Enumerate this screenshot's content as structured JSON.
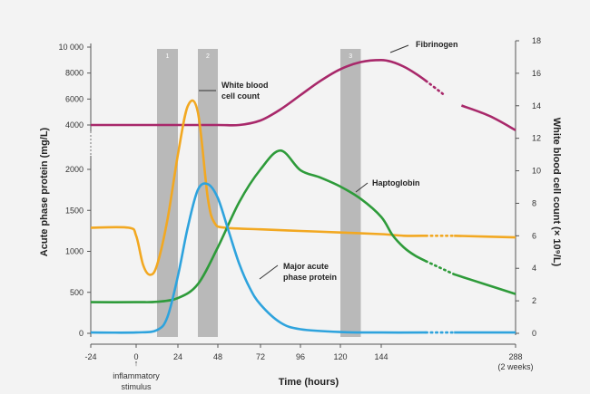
{
  "chart_data": {
    "type": "line",
    "xlabel": "Time (hours)",
    "ylabel_left": "Acute phase protein (mg/L)",
    "ylabel_right": "White blood cell count (× 10⁹/L)",
    "x_ticks": [
      {
        "value": -24,
        "label": "-24"
      },
      {
        "value": 0,
        "label": "0"
      },
      {
        "value": 24,
        "label": "24"
      },
      {
        "value": 48,
        "label": "48"
      },
      {
        "value": 72,
        "label": "72"
      },
      {
        "value": 96,
        "label": "96"
      },
      {
        "value": 120,
        "label": "120"
      },
      {
        "value": 144,
        "label": "144"
      },
      {
        "value": 288,
        "label": "288"
      }
    ],
    "x_tick_288_sub": "(2 weeks)",
    "stimulus_label_line1": "inflammatory",
    "stimulus_label_line2": "stimulus",
    "stimulus_arrow": "↑",
    "left_ticks_lower": [
      "0",
      "500",
      "1000",
      "1500",
      "2000"
    ],
    "left_ticks_upper": [
      "4000",
      "6000",
      "8000",
      "10 000"
    ],
    "right_ticks": [
      "0",
      "2",
      "4",
      "6",
      "8",
      "10",
      "12",
      "14",
      "16",
      "18"
    ],
    "bands": [
      {
        "label": "1",
        "start": 12,
        "end": 24
      },
      {
        "label": "2",
        "start": 36,
        "end": 48
      },
      {
        "label": "3",
        "start": 120,
        "end": 132
      }
    ],
    "series": [
      {
        "name": "Fibrinogen",
        "color": "#a8286a",
        "axis": "left",
        "points": [
          [
            -24,
            4000
          ],
          [
            0,
            4000
          ],
          [
            24,
            4000
          ],
          [
            48,
            4000
          ],
          [
            60,
            4000
          ],
          [
            72,
            4350
          ],
          [
            84,
            5200
          ],
          [
            96,
            6300
          ],
          [
            108,
            7400
          ],
          [
            120,
            8300
          ],
          [
            132,
            8850
          ],
          [
            144,
            9000
          ],
          [
            156,
            8850
          ],
          [
            168,
            8500
          ],
          [
            180,
            8000
          ],
          [
            192,
            7400
          ],
          [
            210,
            6400
          ],
          [
            230,
            5500
          ],
          [
            260,
            4700
          ],
          [
            288,
            3600
          ]
        ],
        "dotted_range": [
          192,
          222
        ]
      },
      {
        "name": "White blood cell count",
        "color": "#f2a821",
        "axis": "right",
        "points": [
          [
            -24,
            6.5
          ],
          [
            -4,
            6.5
          ],
          [
            0,
            6.0
          ],
          [
            4,
            4.2
          ],
          [
            8,
            3.6
          ],
          [
            12,
            4.2
          ],
          [
            18,
            7.0
          ],
          [
            24,
            11.0
          ],
          [
            30,
            14.0
          ],
          [
            36,
            13.6
          ],
          [
            42,
            8.3
          ],
          [
            46,
            6.8
          ],
          [
            52,
            6.5
          ],
          [
            72,
            6.4
          ],
          [
            96,
            6.3
          ],
          [
            120,
            6.2
          ],
          [
            144,
            6.1
          ],
          [
            168,
            6.0
          ],
          [
            192,
            6.0
          ],
          [
            222,
            6.0
          ],
          [
            288,
            5.9
          ]
        ],
        "dotted_range": [
          192,
          222
        ]
      },
      {
        "name": "Haptoglobin",
        "color": "#2e9b3a",
        "axis": "left",
        "points": [
          [
            -24,
            380
          ],
          [
            0,
            380
          ],
          [
            12,
            385
          ],
          [
            24,
            430
          ],
          [
            36,
            600
          ],
          [
            48,
            1050
          ],
          [
            60,
            1600
          ],
          [
            72,
            2000
          ],
          [
            84,
            2030
          ],
          [
            96,
            1990
          ],
          [
            108,
            1900
          ],
          [
            120,
            1790
          ],
          [
            132,
            1640
          ],
          [
            144,
            1420
          ],
          [
            156,
            1200
          ],
          [
            168,
            1050
          ],
          [
            180,
            950
          ],
          [
            192,
            880
          ],
          [
            222,
            720
          ],
          [
            255,
            600
          ],
          [
            288,
            480
          ]
        ],
        "dotted_range": [
          192,
          222
        ]
      },
      {
        "name": "Major acute phase protein",
        "color": "#2ea3dd",
        "axis": "left",
        "points": [
          [
            -24,
            10
          ],
          [
            0,
            10
          ],
          [
            12,
            40
          ],
          [
            18,
            200
          ],
          [
            24,
            700
          ],
          [
            30,
            1300
          ],
          [
            36,
            1750
          ],
          [
            42,
            1820
          ],
          [
            48,
            1650
          ],
          [
            54,
            1250
          ],
          [
            60,
            850
          ],
          [
            66,
            550
          ],
          [
            72,
            350
          ],
          [
            84,
            130
          ],
          [
            96,
            50
          ],
          [
            120,
            15
          ],
          [
            144,
            10
          ],
          [
            192,
            10
          ],
          [
            222,
            10
          ],
          [
            288,
            10
          ]
        ],
        "dotted_range": [
          192,
          222
        ]
      }
    ],
    "annotations": {
      "fibrinogen": "Fibrinogen",
      "wbc_line1": "White blood",
      "wbc_line2": "cell count",
      "haptoglobin": "Haptoglobin",
      "maj_line1": "Major acute",
      "maj_line2": "phase protein"
    }
  }
}
